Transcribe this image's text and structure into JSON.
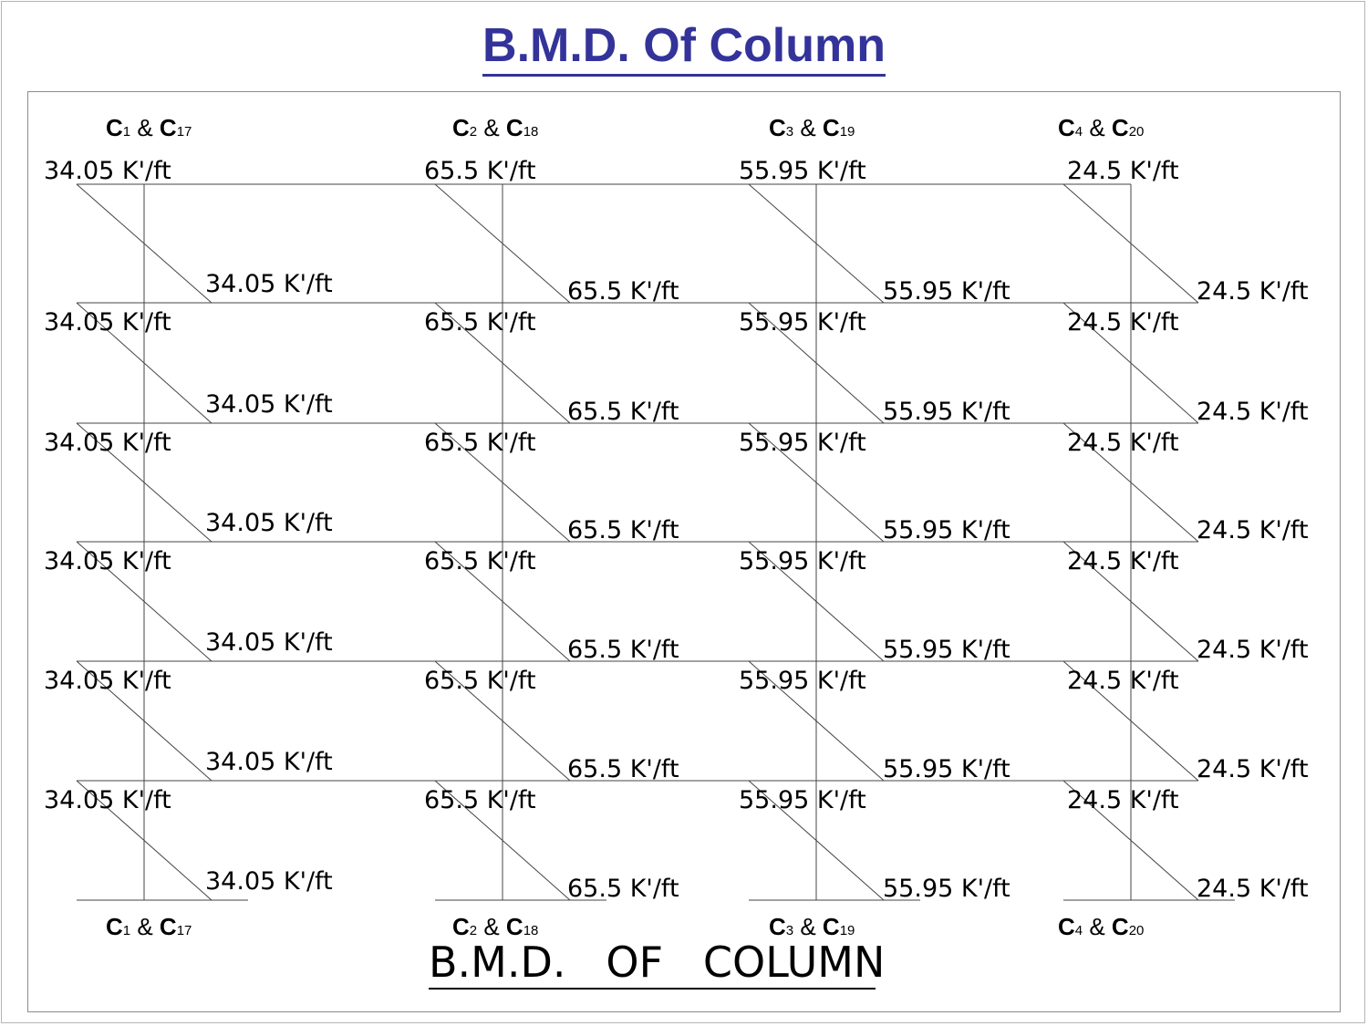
{
  "title": "B.M.D.  Of  Column",
  "bottom_title": "B.M.D.   OF   COLUMN",
  "columns": [
    {
      "main": "C",
      "sub1": "1",
      "amp": " & ",
      "main2": "C",
      "sub2": "17",
      "moment": "34.05 K'/ft"
    },
    {
      "main": "C",
      "sub1": "2",
      "amp": " & ",
      "main2": "C",
      "sub2": "18",
      "moment": "65.5 K'/ft"
    },
    {
      "main": "C",
      "sub1": "3",
      "amp": " & ",
      "main2": "C",
      "sub2": "19",
      "moment": "55.95 K'/ft"
    },
    {
      "main": "C",
      "sub1": "4",
      "amp": " & ",
      "main2": "C",
      "sub2": "20",
      "moment": "24.5 K'/ft"
    }
  ],
  "stories": 6,
  "colors": {
    "title": "#33339a",
    "lines": "#444444",
    "frame": "#8c8c8c"
  }
}
